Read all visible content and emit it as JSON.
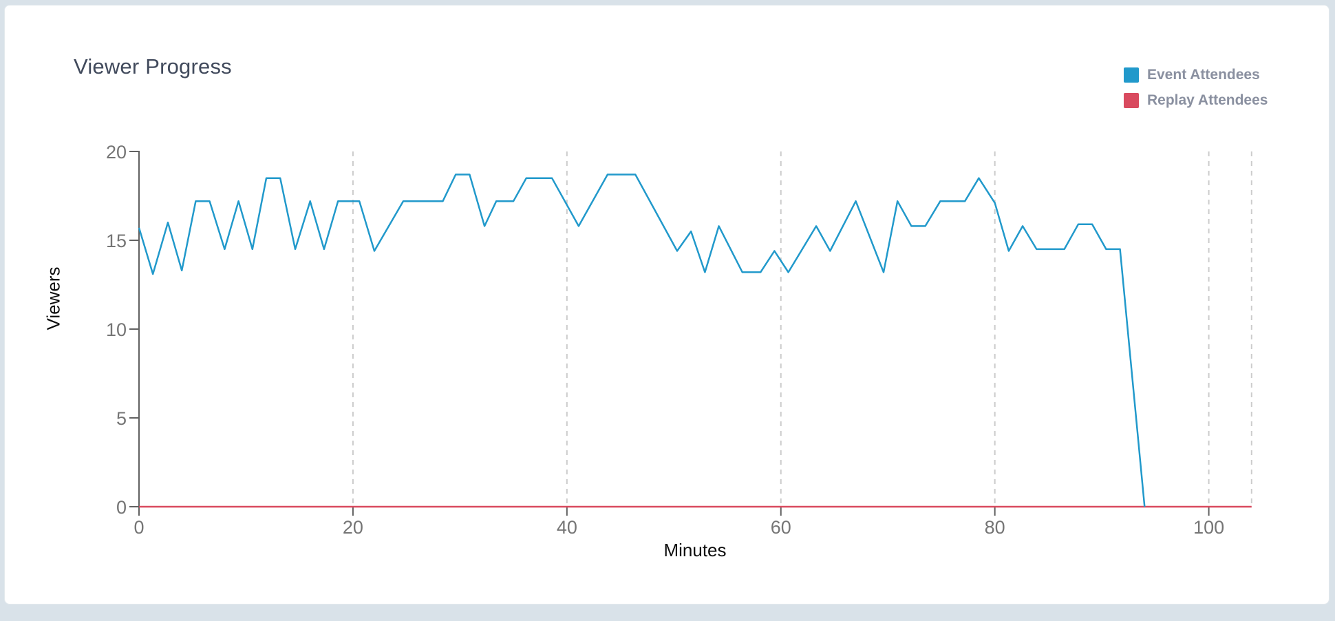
{
  "page": {
    "background_color": "#d9e2e9",
    "card_color": "#ffffff"
  },
  "chart": {
    "title": "Viewer Progress",
    "x_axis_label": "Minutes",
    "y_axis_label": "Viewers",
    "legend": [
      {
        "label": "Event Attendees",
        "color": "#2199cb"
      },
      {
        "label": "Replay Attendees",
        "color": "#d94a5f"
      }
    ]
  },
  "chart_data": {
    "type": "line",
    "title": "Viewer Progress",
    "xlabel": "Minutes",
    "ylabel": "Viewers",
    "xlim": [
      0,
      104
    ],
    "ylim": [
      0,
      20
    ],
    "x_ticks": [
      0,
      20,
      40,
      60,
      80,
      100
    ],
    "y_ticks": [
      0,
      5,
      10,
      15,
      20
    ],
    "grid": "vertical-dashed",
    "legend_position": "top-right",
    "axis_colors": {
      "line": "#616161",
      "tick_text": "#757575",
      "grid": "#cccccc"
    },
    "series": [
      {
        "name": "Event Attendees",
        "color": "#2199cb",
        "points": [
          [
            0,
            15.7
          ],
          [
            1.3,
            13.1
          ],
          [
            2.7,
            16.0
          ],
          [
            4.0,
            13.3
          ],
          [
            5.3,
            17.2
          ],
          [
            6.6,
            17.2
          ],
          [
            8.0,
            14.5
          ],
          [
            9.3,
            17.2
          ],
          [
            10.6,
            14.5
          ],
          [
            11.9,
            18.5
          ],
          [
            13.2,
            18.5
          ],
          [
            14.6,
            14.5
          ],
          [
            16.0,
            17.2
          ],
          [
            17.3,
            14.5
          ],
          [
            18.6,
            17.2
          ],
          [
            20.6,
            17.2
          ],
          [
            22.0,
            14.4
          ],
          [
            24.7,
            17.2
          ],
          [
            28.4,
            17.2
          ],
          [
            29.6,
            18.7
          ],
          [
            30.9,
            18.7
          ],
          [
            32.3,
            15.8
          ],
          [
            33.4,
            17.2
          ],
          [
            35.0,
            17.2
          ],
          [
            36.2,
            18.5
          ],
          [
            38.6,
            18.5
          ],
          [
            41.1,
            15.8
          ],
          [
            43.8,
            18.7
          ],
          [
            46.4,
            18.7
          ],
          [
            50.3,
            14.4
          ],
          [
            51.6,
            15.5
          ],
          [
            52.9,
            13.2
          ],
          [
            54.2,
            15.8
          ],
          [
            56.4,
            13.2
          ],
          [
            58.1,
            13.2
          ],
          [
            59.4,
            14.4
          ],
          [
            60.7,
            13.2
          ],
          [
            63.3,
            15.8
          ],
          [
            64.6,
            14.4
          ],
          [
            67.0,
            17.2
          ],
          [
            69.6,
            13.2
          ],
          [
            70.9,
            17.2
          ],
          [
            72.2,
            15.8
          ],
          [
            73.5,
            15.8
          ],
          [
            74.9,
            17.2
          ],
          [
            77.2,
            17.2
          ],
          [
            78.5,
            18.5
          ],
          [
            80.0,
            17.1
          ],
          [
            81.3,
            14.4
          ],
          [
            82.6,
            15.8
          ],
          [
            83.9,
            14.5
          ],
          [
            86.5,
            14.5
          ],
          [
            87.8,
            15.9
          ],
          [
            89.1,
            15.9
          ],
          [
            90.4,
            14.5
          ],
          [
            91.7,
            14.5
          ],
          [
            94.0,
            0
          ]
        ]
      },
      {
        "name": "Replay Attendees",
        "color": "#d94a5f",
        "points": [
          [
            0,
            0
          ],
          [
            104,
            0
          ]
        ]
      }
    ]
  }
}
